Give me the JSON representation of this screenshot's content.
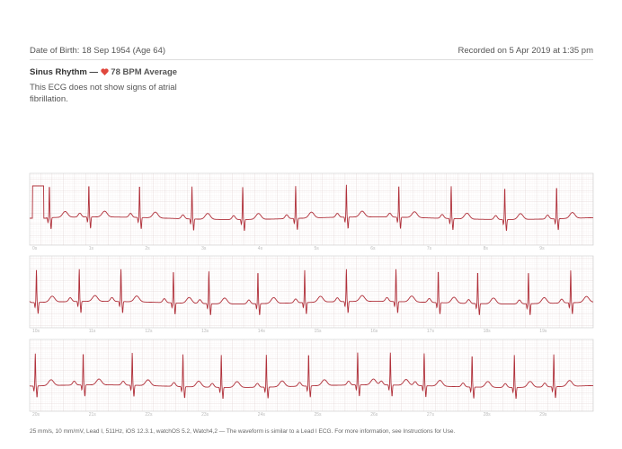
{
  "header": {
    "date_of_birth": "Date of Birth: 18 Sep 1954 (Age 64)",
    "recorded": "Recorded on 5 Apr 2019 at 1:35 pm"
  },
  "result": {
    "classification": "Sinus Rhythm —",
    "average": "78 BPM Average",
    "description": "This ECG does not show signs of atrial fibrillation."
  },
  "strips": [
    {
      "time_labels": [
        "0s",
        "1s",
        "2s",
        "3s",
        "4s",
        "5s",
        "6s",
        "7s",
        "8s",
        "9s"
      ]
    },
    {
      "time_labels": [
        "10s",
        "11s",
        "12s",
        "13s",
        "14s",
        "15s",
        "16s",
        "17s",
        "18s",
        "19s"
      ]
    },
    {
      "time_labels": [
        "20s",
        "21s",
        "22s",
        "23s",
        "24s",
        "25s",
        "26s",
        "27s",
        "28s",
        "29s"
      ]
    }
  ],
  "footer": "25 mm/s, 10 mm/mV, Lead I, 511Hz, iOS 12.3.1, watchOS 5.2, Watch4,2 — The waveform is similar to a Lead I ECG. For more information, see Instructions for Use."
}
